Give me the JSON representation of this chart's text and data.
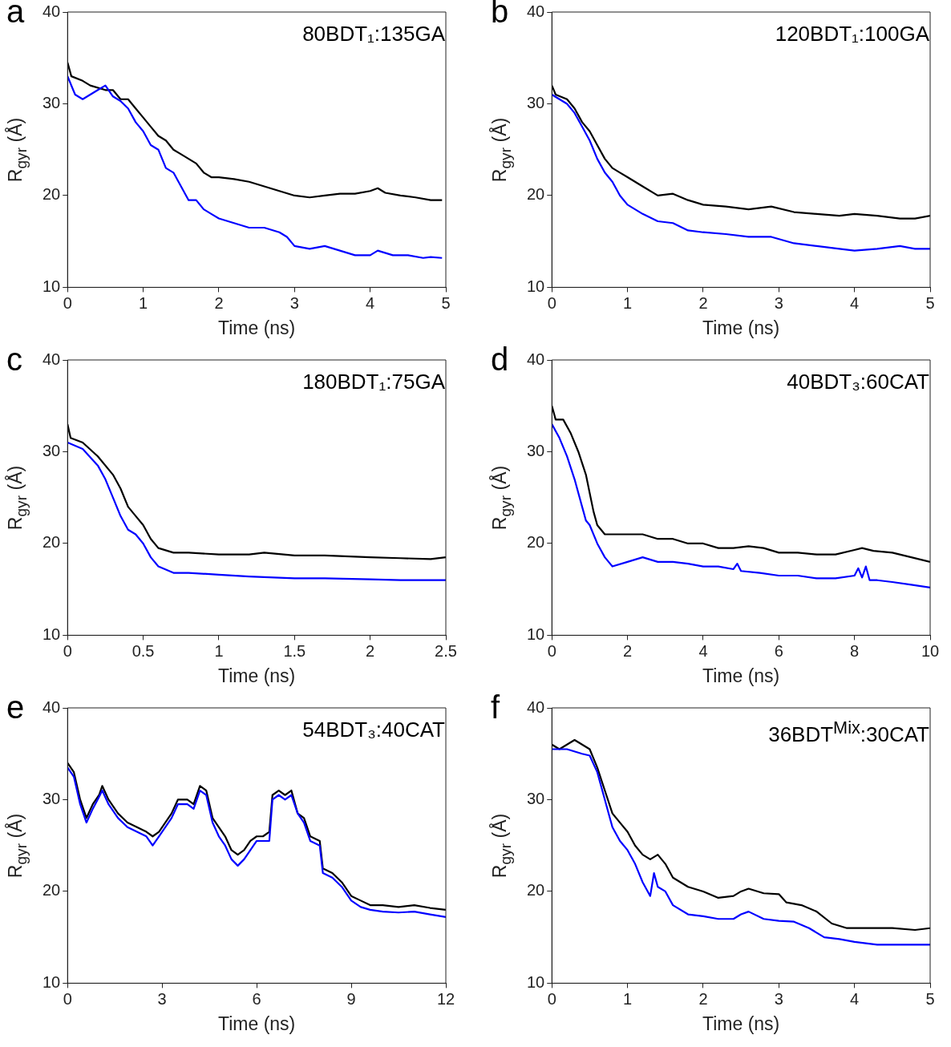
{
  "chart_data": [
    {
      "type": "line",
      "title": "a",
      "xlabel": "Time (ns)",
      "ylabel": "R$_{gyr}$ (Å)",
      "annotations": [
        "80BDT₁:135GA"
      ],
      "xlim": [
        0,
        5
      ],
      "xticks": [
        0,
        1,
        2,
        3,
        4,
        5
      ],
      "ylim": [
        10,
        40
      ],
      "yticks": [
        10,
        20,
        30,
        40
      ],
      "grid": false,
      "legend": false,
      "marker": "none",
      "line_style": "solid",
      "series": [
        {
          "color": "#0000ff",
          "x": [
            0,
            0.1,
            0.2,
            0.3,
            0.4,
            0.5,
            0.6,
            0.7,
            0.8,
            0.9,
            1.0,
            1.1,
            1.2,
            1.3,
            1.4,
            1.5,
            1.6,
            1.7,
            1.8,
            1.9,
            2.0,
            2.2,
            2.4,
            2.6,
            2.8,
            2.9,
            3.0,
            3.2,
            3.4,
            3.6,
            3.8,
            4.0,
            4.1,
            4.3,
            4.5,
            4.7,
            4.8,
            4.95
          ],
          "values": [
            33,
            31,
            30.5,
            31,
            31.5,
            32,
            30.8,
            30.3,
            29.5,
            28,
            27,
            25.5,
            25,
            23,
            22.5,
            21,
            19.5,
            19.5,
            18.5,
            18,
            17.5,
            17,
            16.5,
            16.5,
            16,
            15.5,
            14.5,
            14.2,
            14.5,
            14,
            13.5,
            13.5,
            14,
            13.5,
            13.5,
            13.2,
            13.3,
            13.2
          ]
        },
        {
          "color": "#000000",
          "x": [
            0,
            0.05,
            0.2,
            0.3,
            0.5,
            0.6,
            0.7,
            0.8,
            0.9,
            1.0,
            1.1,
            1.2,
            1.3,
            1.4,
            1.5,
            1.6,
            1.7,
            1.8,
            1.9,
            2.0,
            2.2,
            2.4,
            2.6,
            2.8,
            3.0,
            3.2,
            3.4,
            3.6,
            3.8,
            4.0,
            4.1,
            4.2,
            4.4,
            4.6,
            4.8,
            4.95
          ],
          "values": [
            34.5,
            33,
            32.5,
            32,
            31.5,
            31.5,
            30.5,
            30.5,
            29.5,
            28.5,
            27.5,
            26.5,
            26,
            25,
            24.5,
            24,
            23.5,
            22.5,
            22,
            22,
            21.8,
            21.5,
            21,
            20.5,
            20,
            19.8,
            20,
            20.2,
            20.2,
            20.5,
            20.8,
            20.3,
            20,
            19.8,
            19.5,
            19.5
          ]
        }
      ]
    },
    {
      "type": "line",
      "title": "b",
      "xlabel": "Time (ns)",
      "ylabel": "R$_{gyr}$ (Å)",
      "annotations": [
        "120BDT₁:100GA"
      ],
      "xlim": [
        0,
        5
      ],
      "xticks": [
        0,
        1,
        2,
        3,
        4,
        5
      ],
      "ylim": [
        10,
        40
      ],
      "yticks": [
        10,
        20,
        30,
        40
      ],
      "grid": false,
      "legend": false,
      "marker": "none",
      "line_style": "solid",
      "series": [
        {
          "color": "#0000ff",
          "x": [
            0,
            0.2,
            0.3,
            0.4,
            0.5,
            0.6,
            0.7,
            0.8,
            0.9,
            1.0,
            1.2,
            1.4,
            1.6,
            1.8,
            2.0,
            2.3,
            2.6,
            2.9,
            3.2,
            3.5,
            3.8,
            4.0,
            4.3,
            4.6,
            4.8,
            5.0
          ],
          "values": [
            31,
            30,
            29,
            27.5,
            26,
            24,
            22.5,
            21.5,
            20,
            19,
            18,
            17.2,
            17,
            16.2,
            16,
            15.8,
            15.5,
            15.5,
            14.8,
            14.5,
            14.2,
            14,
            14.2,
            14.5,
            14.2,
            14.2
          ]
        },
        {
          "color": "#000000",
          "x": [
            0,
            0.05,
            0.2,
            0.3,
            0.4,
            0.5,
            0.6,
            0.7,
            0.8,
            0.9,
            1.0,
            1.2,
            1.4,
            1.6,
            1.8,
            2.0,
            2.3,
            2.6,
            2.9,
            3.2,
            3.5,
            3.8,
            4.0,
            4.3,
            4.6,
            4.8,
            5.0
          ],
          "values": [
            32,
            31,
            30.5,
            29.5,
            28,
            27,
            25.5,
            24,
            23,
            22.5,
            22,
            21,
            20,
            20.2,
            19.5,
            19,
            18.8,
            18.5,
            18.8,
            18.2,
            18,
            17.8,
            18,
            17.8,
            17.5,
            17.5,
            17.8
          ]
        }
      ]
    },
    {
      "type": "line",
      "title": "c",
      "xlabel": "Time (ns)",
      "ylabel": "R$_{gyr}$ (Å)",
      "annotations": [
        "180BDT₁:75GA"
      ],
      "xlim": [
        0,
        2.5
      ],
      "xticks": [
        0,
        0.5,
        1,
        1.5,
        2,
        2.5
      ],
      "ylim": [
        10,
        40
      ],
      "yticks": [
        10,
        20,
        30,
        40
      ],
      "grid": false,
      "legend": false,
      "marker": "none",
      "line_style": "solid",
      "series": [
        {
          "color": "#0000ff",
          "x": [
            0,
            0.1,
            0.2,
            0.25,
            0.3,
            0.35,
            0.4,
            0.45,
            0.5,
            0.55,
            0.6,
            0.7,
            0.8,
            1.0,
            1.2,
            1.5,
            1.7,
            2.0,
            2.2,
            2.5
          ],
          "values": [
            31,
            30.3,
            28.5,
            27,
            25,
            23,
            21.5,
            21,
            20,
            18.5,
            17.5,
            16.8,
            16.8,
            16.6,
            16.4,
            16.2,
            16.2,
            16.1,
            16,
            16
          ]
        },
        {
          "color": "#000000",
          "x": [
            0,
            0.02,
            0.1,
            0.2,
            0.3,
            0.35,
            0.4,
            0.45,
            0.5,
            0.55,
            0.6,
            0.7,
            0.8,
            1.0,
            1.2,
            1.3,
            1.5,
            1.7,
            2.0,
            2.2,
            2.4,
            2.5
          ],
          "values": [
            33,
            31.5,
            31,
            29.5,
            27.5,
            26,
            24,
            23,
            22,
            20.5,
            19.5,
            19,
            19,
            18.8,
            18.8,
            19,
            18.7,
            18.7,
            18.5,
            18.4,
            18.3,
            18.5
          ]
        }
      ]
    },
    {
      "type": "line",
      "title": "d",
      "xlabel": "Time (ns)",
      "ylabel": "R$_{gyr}$ (Å)",
      "annotations": [
        "40BDT₃:60CAT"
      ],
      "xlim": [
        0,
        10
      ],
      "xticks": [
        0,
        2,
        4,
        6,
        8,
        10
      ],
      "ylim": [
        10,
        40
      ],
      "yticks": [
        10,
        20,
        30,
        40
      ],
      "grid": false,
      "legend": false,
      "marker": "none",
      "line_style": "solid",
      "series": [
        {
          "color": "#0000ff",
          "x": [
            0,
            0.2,
            0.4,
            0.6,
            0.8,
            0.9,
            1.0,
            1.2,
            1.4,
            1.6,
            2.0,
            2.4,
            2.8,
            3.2,
            3.6,
            4.0,
            4.4,
            4.8,
            4.9,
            5.0,
            5.5,
            6.0,
            6.5,
            7.0,
            7.5,
            8.0,
            8.1,
            8.2,
            8.3,
            8.4,
            8.6,
            9.0,
            9.5,
            10
          ],
          "values": [
            33,
            31.5,
            29.5,
            27,
            24,
            22.5,
            22,
            20,
            18.5,
            17.5,
            18,
            18.5,
            18,
            18,
            17.8,
            17.5,
            17.5,
            17.2,
            17.8,
            17,
            16.8,
            16.5,
            16.5,
            16.2,
            16.2,
            16.5,
            17.3,
            16.3,
            17.5,
            16,
            16,
            15.8,
            15.5,
            15.2
          ]
        },
        {
          "color": "#000000",
          "x": [
            0,
            0.1,
            0.3,
            0.5,
            0.7,
            0.9,
            1.0,
            1.1,
            1.2,
            1.4,
            1.6,
            2.0,
            2.4,
            2.8,
            3.2,
            3.6,
            4.0,
            4.4,
            4.8,
            5.2,
            5.6,
            6.0,
            6.5,
            7.0,
            7.5,
            8.0,
            8.2,
            8.5,
            9.0,
            9.5,
            10
          ],
          "values": [
            35,
            33.5,
            33.5,
            32,
            30,
            27.5,
            25.5,
            23.5,
            22,
            21,
            21,
            21,
            21,
            20.5,
            20.5,
            20,
            20,
            19.5,
            19.5,
            19.7,
            19.5,
            19,
            19,
            18.8,
            18.8,
            19.3,
            19.5,
            19.2,
            19,
            18.5,
            18
          ]
        }
      ]
    },
    {
      "type": "line",
      "title": "e",
      "xlabel": "Time (ns)",
      "ylabel": "R$_{gyr}$ (Å)",
      "annotations": [
        "54BDT₃:40CAT"
      ],
      "xlim": [
        0,
        12
      ],
      "xticks": [
        0,
        3,
        6,
        9,
        12
      ],
      "ylim": [
        10,
        40
      ],
      "yticks": [
        10,
        20,
        30,
        40
      ],
      "grid": false,
      "legend": false,
      "marker": "none",
      "line_style": "solid",
      "series": [
        {
          "color": "#0000ff",
          "x": [
            0,
            0.2,
            0.4,
            0.6,
            0.8,
            1.0,
            1.1,
            1.3,
            1.6,
            1.9,
            2.2,
            2.5,
            2.7,
            2.9,
            3.1,
            3.3,
            3.5,
            3.8,
            4.0,
            4.2,
            4.4,
            4.6,
            4.8,
            5.0,
            5.2,
            5.4,
            5.6,
            5.8,
            6.0,
            6.2,
            6.4,
            6.5,
            6.7,
            6.9,
            7.1,
            7.3,
            7.5,
            7.7,
            8.0,
            8.1,
            8.4,
            8.7,
            9.0,
            9.3,
            9.6,
            10,
            10.5,
            11,
            11.5,
            12
          ],
          "values": [
            33.5,
            32.5,
            29.5,
            27.5,
            29,
            30.3,
            31,
            29.5,
            28,
            27,
            26.5,
            26,
            25,
            26,
            27,
            28,
            29.5,
            29.5,
            29,
            31,
            30.5,
            27.5,
            26,
            25,
            23.5,
            22.8,
            23.5,
            24.5,
            25.5,
            25.5,
            25.5,
            30,
            30.5,
            30,
            30.5,
            28.5,
            27.5,
            25.5,
            25,
            22,
            21.5,
            20.5,
            19,
            18.3,
            18,
            17.8,
            17.7,
            17.8,
            17.5,
            17.2
          ]
        },
        {
          "color": "#000000",
          "x": [
            0,
            0.2,
            0.4,
            0.6,
            0.8,
            1.0,
            1.1,
            1.3,
            1.6,
            1.9,
            2.2,
            2.5,
            2.7,
            2.9,
            3.1,
            3.3,
            3.5,
            3.8,
            4.0,
            4.2,
            4.4,
            4.6,
            4.8,
            5.0,
            5.2,
            5.4,
            5.6,
            5.8,
            6.0,
            6.2,
            6.4,
            6.5,
            6.7,
            6.9,
            7.1,
            7.3,
            7.5,
            7.7,
            8.0,
            8.1,
            8.4,
            8.7,
            9.0,
            9.3,
            9.6,
            10,
            10.5,
            11,
            11.5,
            12
          ],
          "values": [
            34,
            33,
            30,
            28,
            29.5,
            30.5,
            31.5,
            30,
            28.5,
            27.5,
            27,
            26.5,
            26,
            26.5,
            27.5,
            28.5,
            30,
            30,
            29.5,
            31.5,
            31,
            28,
            27,
            26,
            24.5,
            24,
            24.5,
            25.5,
            26,
            26,
            26.5,
            30.5,
            31,
            30.5,
            31,
            28.5,
            28,
            26,
            25.5,
            22.5,
            22,
            21,
            19.5,
            19,
            18.5,
            18.5,
            18.3,
            18.5,
            18.2,
            18
          ]
        }
      ]
    },
    {
      "type": "line",
      "title": "f",
      "xlabel": "Time (ns)",
      "ylabel": "R$_{gyr}$ (Å)",
      "annotations": [
        "36BDT$^{Mix}$:30CAT"
      ],
      "xlim": [
        0,
        5
      ],
      "xticks": [
        0,
        1,
        2,
        3,
        4,
        5
      ],
      "ylim": [
        10,
        40
      ],
      "yticks": [
        10,
        20,
        30,
        40
      ],
      "grid": false,
      "legend": false,
      "marker": "none",
      "line_style": "solid",
      "series": [
        {
          "color": "#0000ff",
          "x": [
            0,
            0.2,
            0.4,
            0.5,
            0.6,
            0.7,
            0.8,
            0.9,
            1.0,
            1.1,
            1.2,
            1.3,
            1.35,
            1.4,
            1.5,
            1.6,
            1.8,
            2.0,
            2.2,
            2.4,
            2.5,
            2.6,
            2.8,
            3.0,
            3.2,
            3.4,
            3.6,
            3.8,
            4.0,
            4.3,
            4.6,
            5.0
          ],
          "values": [
            35.5,
            35.5,
            35,
            34.8,
            33,
            30,
            27,
            25.5,
            24.5,
            23,
            21,
            19.5,
            22,
            20.5,
            20,
            18.5,
            17.5,
            17.3,
            17,
            17,
            17.5,
            17.8,
            17,
            16.8,
            16.7,
            16,
            15,
            14.8,
            14.5,
            14.2,
            14.2,
            14.2
          ]
        },
        {
          "color": "#000000",
          "x": [
            0,
            0.1,
            0.2,
            0.3,
            0.4,
            0.5,
            0.6,
            0.7,
            0.8,
            0.9,
            1.0,
            1.1,
            1.2,
            1.3,
            1.4,
            1.5,
            1.6,
            1.8,
            2.0,
            2.2,
            2.4,
            2.5,
            2.6,
            2.8,
            3.0,
            3.1,
            3.3,
            3.5,
            3.7,
            3.9,
            4.2,
            4.5,
            4.8,
            5.0
          ],
          "values": [
            36,
            35.5,
            36,
            36.5,
            36,
            35.5,
            33.5,
            31,
            28.5,
            27.5,
            26.5,
            25,
            24,
            23.5,
            24,
            23,
            21.5,
            20.5,
            20,
            19.3,
            19.5,
            20,
            20.3,
            19.8,
            19.7,
            18.8,
            18.5,
            17.8,
            16.5,
            16,
            16,
            16,
            15.8,
            16
          ]
        }
      ]
    }
  ]
}
